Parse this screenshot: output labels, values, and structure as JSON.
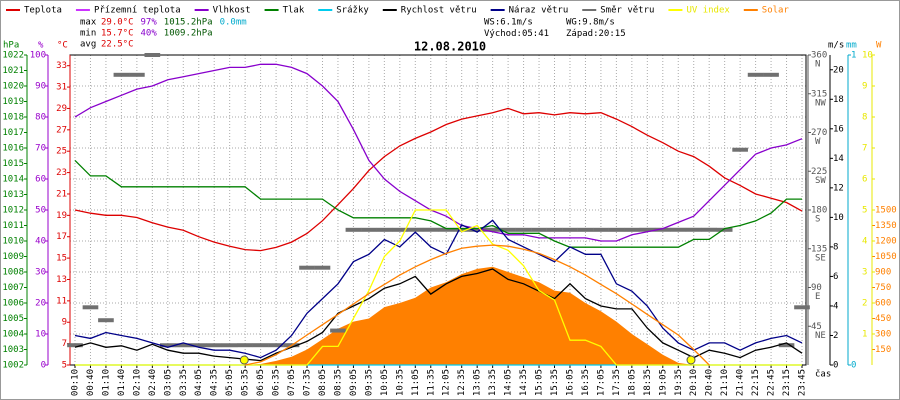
{
  "chart_data": {
    "type": "line",
    "title": "12.08.2010",
    "categories": [
      "00:10",
      "00:40",
      "01:10",
      "01:40",
      "02:10",
      "02:40",
      "03:05",
      "03:35",
      "04:05",
      "04:35",
      "05:05",
      "05:35",
      "06:05",
      "06:35",
      "07:05",
      "07:35",
      "08:05",
      "08:35",
      "09:05",
      "09:35",
      "10:05",
      "10:35",
      "11:05",
      "11:35",
      "12:05",
      "12:35",
      "13:05",
      "13:35",
      "14:05",
      "14:35",
      "15:05",
      "15:35",
      "16:05",
      "16:35",
      "17:05",
      "17:35",
      "18:05",
      "18:35",
      "19:05",
      "19:35",
      "20:10",
      "20:40",
      "21:10",
      "21:40",
      "22:15",
      "22:45",
      "23:15",
      "23:45"
    ],
    "x_label": "čas",
    "grid": true,
    "axes": [
      {
        "label": "hPa",
        "color": "#008000",
        "lim": [
          1002,
          1022
        ],
        "ticks": [
          1002,
          1003,
          1004,
          1005,
          1006,
          1007,
          1008,
          1009,
          1010,
          1011,
          1012,
          1013,
          1014,
          1015,
          1016,
          1017,
          1018,
          1019,
          1020,
          1021,
          1022
        ]
      },
      {
        "label": "%",
        "color": "#9900cc",
        "lim": [
          0,
          100
        ],
        "ticks": [
          0,
          10,
          20,
          30,
          40,
          50,
          60,
          70,
          80,
          90,
          100
        ]
      },
      {
        "label": "°C",
        "color": "#dd0000",
        "lim": [
          5,
          34
        ],
        "ticks": [
          5,
          7,
          9,
          11,
          13,
          15,
          17,
          19,
          21,
          23,
          25,
          27,
          29,
          31,
          33
        ]
      },
      {
        "color": "#555555",
        "lim": [
          0,
          360
        ],
        "ticks": [
          45,
          90,
          135,
          180,
          225,
          270,
          315,
          360
        ],
        "tick_names": [
          "NE",
          "E",
          "SE",
          "S",
          "SW",
          "W",
          "NW",
          "N"
        ]
      },
      {
        "label": "m/s",
        "color": "#000000",
        "lim": [
          0,
          21
        ],
        "ticks": [
          0,
          2,
          4,
          6,
          8,
          10,
          12,
          14,
          16,
          18,
          20
        ]
      },
      {
        "label": "mm",
        "color": "#00aacc",
        "lim": [
          0,
          1
        ],
        "ticks": [
          0,
          1
        ]
      },
      {
        "label": "W",
        "color": "#ff8000",
        "lim": [
          0,
          3000
        ],
        "ticks": [
          150,
          300,
          450,
          600,
          750,
          900,
          1050,
          1200,
          1350,
          1500
        ]
      },
      {
        "color": "#e8e800",
        "lim": [
          0,
          10
        ],
        "ticks": [
          1,
          2,
          3,
          4,
          5,
          6,
          7,
          8,
          9,
          10
        ]
      }
    ],
    "series": [
      {
        "name": "Teplota",
        "color": "#dd0000",
        "axis": 2,
        "style": "line",
        "values": [
          19.5,
          19.2,
          19.0,
          19.0,
          18.8,
          18.3,
          17.9,
          17.6,
          17.0,
          16.5,
          16.1,
          15.8,
          15.7,
          16.0,
          16.5,
          17.3,
          18.5,
          20.0,
          21.5,
          23.2,
          24.5,
          25.5,
          26.2,
          26.8,
          27.5,
          28.0,
          28.3,
          28.6,
          29.0,
          28.5,
          28.6,
          28.4,
          28.6,
          28.5,
          28.6,
          28.0,
          27.3,
          26.5,
          25.8,
          25.0,
          24.5,
          23.6,
          22.5,
          21.8,
          21.0,
          20.6,
          20.2,
          19.4
        ]
      },
      {
        "name": "Přízemní teplota",
        "color": "#cc33ff",
        "axis": 2,
        "style": "line"
      },
      {
        "name": "Vlhkost",
        "color": "#8800cc",
        "axis": 1,
        "style": "line",
        "values": [
          80,
          83,
          85,
          87,
          89,
          90,
          92,
          93,
          94,
          95,
          96,
          96,
          97,
          97,
          96,
          94,
          90,
          85,
          76,
          66,
          60,
          56,
          53,
          50,
          48,
          45,
          44,
          43,
          42,
          42,
          41,
          41,
          41,
          41,
          40,
          40,
          42,
          43,
          44,
          46,
          48,
          53,
          58,
          63,
          68,
          70,
          71,
          73
        ]
      },
      {
        "name": "Tlak",
        "color": "#008000",
        "axis": 0,
        "style": "line",
        "values": [
          1015.2,
          1014.2,
          1014.2,
          1013.5,
          1013.5,
          1013.5,
          1013.5,
          1013.5,
          1013.5,
          1013.5,
          1013.5,
          1013.5,
          1012.7,
          1012.7,
          1012.7,
          1012.7,
          1012.7,
          1012.0,
          1011.5,
          1011.5,
          1011.5,
          1011.5,
          1011.5,
          1011.3,
          1010.8,
          1010.8,
          1010.8,
          1011.0,
          1010.5,
          1010.5,
          1010.5,
          1010.0,
          1009.6,
          1009.6,
          1009.6,
          1009.6,
          1009.6,
          1009.6,
          1009.6,
          1009.6,
          1010.1,
          1010.1,
          1010.8,
          1011.0,
          1011.3,
          1011.8,
          1012.7,
          1012.7
        ]
      },
      {
        "name": "Srážky",
        "color": "#00ccee",
        "axis": 5,
        "style": "line",
        "values": [
          0,
          0,
          0,
          0,
          0,
          0,
          0,
          0,
          0,
          0,
          0,
          0,
          0,
          0,
          0,
          0,
          0,
          0,
          0,
          0,
          0,
          0,
          0,
          0,
          0,
          0,
          0,
          0,
          0,
          0,
          0,
          0,
          0,
          0,
          0,
          0,
          0,
          0,
          0,
          0,
          0,
          0,
          0,
          0,
          0,
          0,
          0,
          0
        ]
      },
      {
        "name": "Rychlost větru",
        "color": "#000000",
        "axis": 4,
        "style": "line",
        "values": [
          1.2,
          1.5,
          1.2,
          1.3,
          1.0,
          1.4,
          1.0,
          0.8,
          0.8,
          0.6,
          0.5,
          0.4,
          0.3,
          0.8,
          1.2,
          1.6,
          2.2,
          3.5,
          4.0,
          4.5,
          5.2,
          5.5,
          6.0,
          4.8,
          5.5,
          6.0,
          6.2,
          6.5,
          5.8,
          5.5,
          5.0,
          4.5,
          5.5,
          4.5,
          4.0,
          3.8,
          3.8,
          2.5,
          1.5,
          1.0,
          0.5,
          1.0,
          0.8,
          0.5,
          1.0,
          1.2,
          1.5,
          0.8
        ]
      },
      {
        "name": "Náraz větru",
        "color": "#000088",
        "axis": 4,
        "style": "line",
        "values": [
          2.0,
          1.8,
          2.2,
          2.0,
          1.8,
          1.5,
          1.2,
          1.5,
          1.2,
          1.0,
          1.0,
          0.8,
          0.5,
          1.0,
          2.0,
          3.5,
          4.5,
          5.5,
          7.0,
          7.5,
          8.5,
          8.0,
          9.0,
          8.0,
          7.5,
          9.5,
          9.0,
          9.8,
          8.5,
          8.0,
          7.5,
          7.0,
          8.0,
          7.5,
          7.5,
          5.5,
          5.0,
          4.0,
          2.5,
          1.5,
          1.0,
          1.5,
          1.5,
          1.0,
          1.5,
          1.8,
          2.0,
          1.5
        ]
      },
      {
        "name": "Směr větru",
        "color": "#707070",
        "axis": 3,
        "style": "segments",
        "values": [
          23,
          67,
          52,
          337,
          337,
          360,
          23,
          23,
          23,
          23,
          23,
          23,
          23,
          23,
          23,
          113,
          113,
          40,
          157,
          157,
          157,
          157,
          157,
          157,
          157,
          157,
          157,
          157,
          157,
          157,
          157,
          157,
          157,
          157,
          157,
          157,
          157,
          157,
          157,
          157,
          157,
          157,
          157,
          250,
          337,
          337,
          23,
          67
        ]
      },
      {
        "name": "UV index",
        "color": "#ffff00",
        "text_color": "#e8e800",
        "axis": 7,
        "style": "line",
        "values": [
          0,
          0,
          0,
          0,
          0,
          0,
          0,
          0,
          0,
          0,
          0,
          0,
          0,
          0,
          0,
          0,
          0.6,
          0.6,
          1.5,
          2.4,
          3.5,
          4.0,
          5.0,
          5.0,
          5.0,
          4.3,
          4.5,
          3.9,
          3.7,
          3.2,
          2.4,
          2.1,
          0.8,
          0.8,
          0.6,
          0,
          0,
          0,
          0,
          0,
          0,
          0,
          0,
          0,
          0,
          0,
          0,
          0
        ]
      },
      {
        "name": "Solar",
        "color": "#ff8000",
        "text_color": "#ff8000",
        "axis": 6,
        "style": "area",
        "values": [
          0,
          0,
          0,
          0,
          0,
          0,
          0,
          0,
          0,
          0,
          0,
          0,
          10,
          40,
          80,
          150,
          250,
          350,
          420,
          450,
          560,
          600,
          650,
          750,
          800,
          880,
          930,
          950,
          900,
          850,
          800,
          720,
          700,
          600,
          520,
          420,
          300,
          200,
          100,
          20,
          0,
          0,
          0,
          0,
          0,
          0,
          0,
          0
        ]
      }
    ],
    "solar_curve": {
      "color": "#ff8000",
      "axis": 6,
      "values": [
        null,
        null,
        null,
        null,
        null,
        null,
        null,
        null,
        null,
        null,
        null,
        0,
        30,
        100,
        190,
        290,
        390,
        490,
        590,
        690,
        780,
        870,
        950,
        1020,
        1080,
        1130,
        1150,
        1160,
        1150,
        1120,
        1080,
        1020,
        950,
        870,
        780,
        690,
        590,
        490,
        390,
        290,
        150,
        0,
        null,
        null,
        null,
        null,
        null,
        null
      ]
    },
    "stats": [
      {
        "label": "max",
        "items": [
          {
            "text": "29.0°C",
            "color": "#dd0000"
          },
          {
            "text": "97%",
            "color": "#8800cc"
          },
          {
            "text": "1015.2hPa",
            "color": "#005500"
          },
          {
            "text": "0.0mm",
            "color": "#00aacc"
          }
        ]
      },
      {
        "label": "min",
        "items": [
          {
            "text": "15.7°C",
            "color": "#dd0000"
          },
          {
            "text": "40%",
            "color": "#8800cc"
          },
          {
            "text": "1009.2hPa",
            "color": "#005500"
          }
        ]
      },
      {
        "label": "avg",
        "items": [
          {
            "text": "22.5°C",
            "color": "#dd0000"
          }
        ]
      }
    ],
    "wind_stats": [
      "WS:6.1m/s",
      "WG:9.8m/s"
    ],
    "sunrise": {
      "label": "Východ:",
      "time": "05:41"
    },
    "sunset": {
      "label": "Západ:",
      "time": "20:15"
    },
    "sun_marker_color": "#ffff00"
  }
}
